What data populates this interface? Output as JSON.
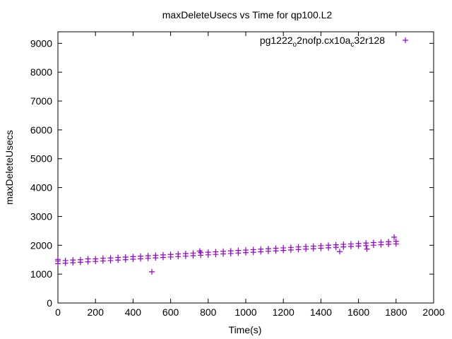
{
  "chart_data": {
    "type": "scatter",
    "title": "maxDeleteUsecs vs Time for qp100.L2",
    "xlabel": "Time(s)",
    "ylabel": "maxDeleteUsecs",
    "xlim": [
      0,
      2000
    ],
    "ylim": [
      0,
      9400
    ],
    "xticks": [
      0,
      200,
      400,
      600,
      800,
      1000,
      1200,
      1400,
      1600,
      1800,
      2000
    ],
    "yticks": [
      0,
      1000,
      2000,
      3000,
      4000,
      5000,
      6000,
      7000,
      8000,
      9000
    ],
    "grid": false,
    "legend_position": "top-right",
    "legend_parts": [
      {
        "text": "pg1222",
        "sub": false
      },
      {
        "text": "o",
        "sub": true
      },
      {
        "text": "2nofp.cx10a",
        "sub": false
      },
      {
        "text": "c",
        "sub": true
      },
      {
        "text": "32r128",
        "sub": false
      }
    ],
    "series": [
      {
        "marker": "+",
        "color": "#9400d3",
        "points": [
          [
            0,
            1365
          ],
          [
            0,
            1455
          ],
          [
            0,
            1510
          ],
          [
            40,
            1380
          ],
          [
            40,
            1470
          ],
          [
            80,
            1395
          ],
          [
            80,
            1490
          ],
          [
            120,
            1410
          ],
          [
            120,
            1500
          ],
          [
            160,
            1425
          ],
          [
            160,
            1530
          ],
          [
            200,
            1440
          ],
          [
            200,
            1530
          ],
          [
            240,
            1455
          ],
          [
            240,
            1550
          ],
          [
            280,
            1470
          ],
          [
            280,
            1560
          ],
          [
            320,
            1487
          ],
          [
            320,
            1578
          ],
          [
            360,
            1500
          ],
          [
            360,
            1592
          ],
          [
            400,
            1517
          ],
          [
            400,
            1607
          ],
          [
            440,
            1532
          ],
          [
            440,
            1622
          ],
          [
            480,
            1547
          ],
          [
            480,
            1637
          ],
          [
            500,
            1080
          ],
          [
            520,
            1563
          ],
          [
            520,
            1653
          ],
          [
            560,
            1578
          ],
          [
            560,
            1668
          ],
          [
            600,
            1593
          ],
          [
            600,
            1683
          ],
          [
            640,
            1608
          ],
          [
            640,
            1700
          ],
          [
            680,
            1623
          ],
          [
            680,
            1713
          ],
          [
            720,
            1640
          ],
          [
            720,
            1730
          ],
          [
            755,
            1800
          ],
          [
            760,
            1654
          ],
          [
            760,
            1744
          ],
          [
            800,
            1669
          ],
          [
            800,
            1760
          ],
          [
            840,
            1684
          ],
          [
            840,
            1774
          ],
          [
            880,
            1700
          ],
          [
            880,
            1790
          ],
          [
            920,
            1715
          ],
          [
            920,
            1805
          ],
          [
            960,
            1730
          ],
          [
            960,
            1820
          ],
          [
            1000,
            1745
          ],
          [
            1000,
            1835
          ],
          [
            1040,
            1760
          ],
          [
            1040,
            1850
          ],
          [
            1080,
            1775
          ],
          [
            1080,
            1866
          ],
          [
            1120,
            1791
          ],
          [
            1120,
            1881
          ],
          [
            1160,
            1806
          ],
          [
            1160,
            1896
          ],
          [
            1200,
            1821
          ],
          [
            1200,
            1911
          ],
          [
            1240,
            1836
          ],
          [
            1240,
            1926
          ],
          [
            1280,
            1851
          ],
          [
            1280,
            1941
          ],
          [
            1320,
            1867
          ],
          [
            1320,
            1957
          ],
          [
            1360,
            1882
          ],
          [
            1360,
            1972
          ],
          [
            1400,
            1897
          ],
          [
            1400,
            1987
          ],
          [
            1440,
            1912
          ],
          [
            1440,
            2002
          ],
          [
            1480,
            1927
          ],
          [
            1480,
            2017
          ],
          [
            1500,
            1780
          ],
          [
            1520,
            1943
          ],
          [
            1520,
            2033
          ],
          [
            1560,
            1958
          ],
          [
            1560,
            2048
          ],
          [
            1600,
            1973
          ],
          [
            1600,
            2063
          ],
          [
            1640,
            1988
          ],
          [
            1640,
            2078
          ],
          [
            1645,
            1870
          ],
          [
            1680,
            2003
          ],
          [
            1680,
            2093
          ],
          [
            1720,
            2019
          ],
          [
            1720,
            2109
          ],
          [
            1760,
            2034
          ],
          [
            1760,
            2124
          ],
          [
            1790,
            2280
          ],
          [
            1800,
            2049
          ],
          [
            1800,
            2139
          ]
        ]
      }
    ]
  }
}
